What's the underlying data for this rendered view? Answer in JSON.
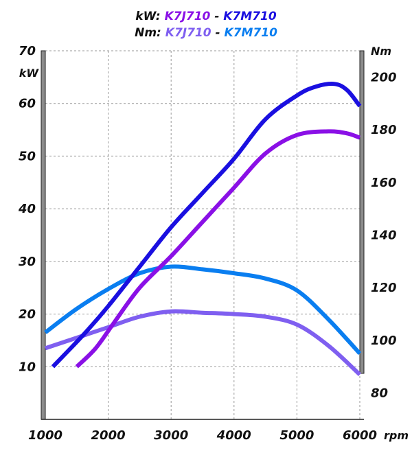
{
  "legend": {
    "kw_prefix": "kW:",
    "nm_prefix": "Nm:",
    "separator": "-",
    "kw_series_1": "K7J710",
    "kw_series_2": "K7M710",
    "nm_series_1": "K7J710",
    "nm_series_2": "K7M710"
  },
  "chart_data": {
    "type": "line",
    "xlabel": "rpm",
    "y_left_label": "kW",
    "y_right_label": "Nm",
    "xlim": [
      1000,
      6000
    ],
    "y_left_lim": [
      0,
      70
    ],
    "y_right_lim": [
      70,
      210
    ],
    "x_ticks": [
      "1000",
      "2000",
      "3000",
      "4000",
      "5000",
      "6000"
    ],
    "y_left_ticks": [
      "10",
      "20",
      "30",
      "40",
      "50",
      "60",
      "70"
    ],
    "y_right_ticks": [
      "80",
      "100",
      "120",
      "140",
      "160",
      "180",
      "200"
    ],
    "grid": true,
    "series": [
      {
        "name": "kW K7J710",
        "axis": "left",
        "color": "#8a10e6",
        "points": [
          [
            1500,
            10
          ],
          [
            1800,
            13.5
          ],
          [
            2100,
            18.5
          ],
          [
            2500,
            25
          ],
          [
            3000,
            31
          ],
          [
            3500,
            37.5
          ],
          [
            4000,
            44
          ],
          [
            4500,
            50.5
          ],
          [
            5000,
            54
          ],
          [
            5500,
            54.7
          ],
          [
            5800,
            54.3
          ],
          [
            6000,
            53.5
          ]
        ]
      },
      {
        "name": "kW K7M710",
        "axis": "left",
        "color": "#1a0fe0",
        "points": [
          [
            1120,
            10
          ],
          [
            1600,
            16
          ],
          [
            2000,
            21.5
          ],
          [
            2500,
            29
          ],
          [
            3000,
            36.5
          ],
          [
            3500,
            43
          ],
          [
            4000,
            49.5
          ],
          [
            4500,
            57
          ],
          [
            5000,
            61.5
          ],
          [
            5300,
            63.2
          ],
          [
            5600,
            63.7
          ],
          [
            5800,
            62.5
          ],
          [
            6000,
            59.5
          ]
        ]
      },
      {
        "name": "Nm K7J710",
        "axis": "right",
        "color": "#7f5ff0",
        "points": [
          [
            1000,
            97
          ],
          [
            1500,
            101
          ],
          [
            2000,
            105
          ],
          [
            2500,
            109
          ],
          [
            3000,
            111
          ],
          [
            3500,
            110.5
          ],
          [
            4000,
            110
          ],
          [
            4500,
            109
          ],
          [
            5000,
            106
          ],
          [
            5500,
            98
          ],
          [
            6000,
            87
          ]
        ]
      },
      {
        "name": "Nm K7M710",
        "axis": "right",
        "color": "#0a7ef0",
        "points": [
          [
            1000,
            103
          ],
          [
            1500,
            112
          ],
          [
            2000,
            119.5
          ],
          [
            2500,
            125.5
          ],
          [
            3000,
            128
          ],
          [
            3500,
            127
          ],
          [
            4000,
            125.5
          ],
          [
            4500,
            123.5
          ],
          [
            5000,
            119
          ],
          [
            5500,
            108
          ],
          [
            6000,
            95
          ]
        ]
      }
    ]
  }
}
